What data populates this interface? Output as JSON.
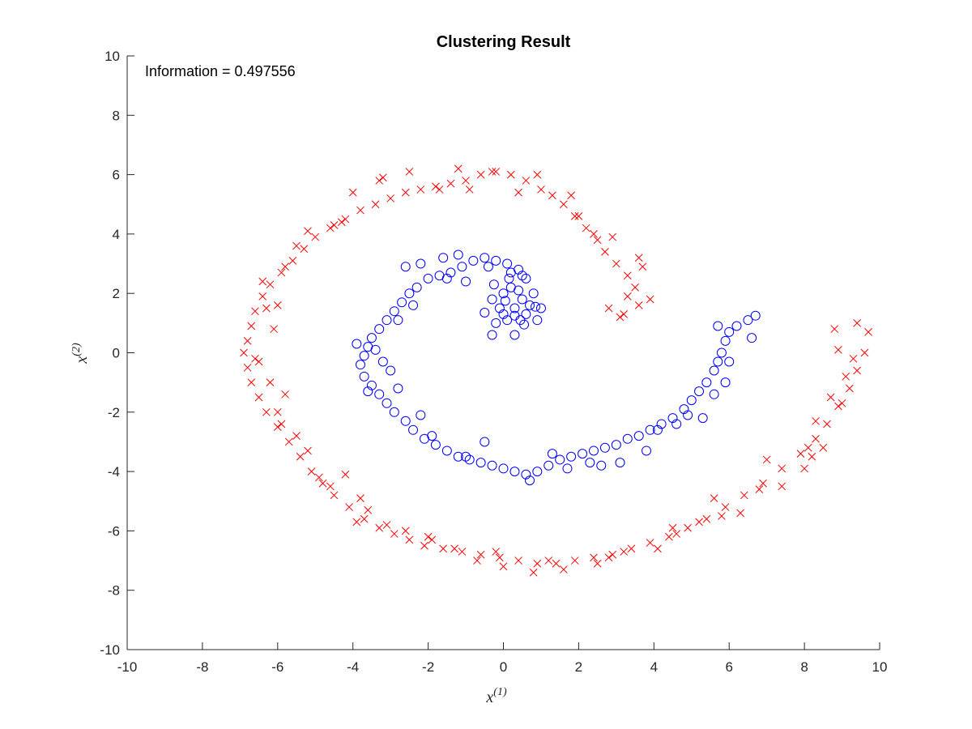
{
  "chart_data": {
    "type": "scatter",
    "title": "Clustering Result",
    "annotation": "Information = 0.497556",
    "xlabel": {
      "base": "x",
      "sup": "(1)"
    },
    "ylabel": {
      "base": "x",
      "sup": "(2)"
    },
    "xlim": [
      -10,
      10
    ],
    "ylim": [
      -10,
      10
    ],
    "xticks": [
      -10,
      -8,
      -6,
      -4,
      -2,
      0,
      2,
      4,
      6,
      8,
      10
    ],
    "yticks": [
      -10,
      -8,
      -6,
      -4,
      -2,
      0,
      2,
      4,
      6,
      8,
      10
    ],
    "grid": false,
    "series": [
      {
        "marker": "o",
        "color": "#0000ff",
        "points": [
          [
            -0.3,
            0.6
          ],
          [
            -0.2,
            1.0
          ],
          [
            0.0,
            1.3
          ],
          [
            0.3,
            1.5
          ],
          [
            0.5,
            1.8
          ],
          [
            0.4,
            2.1
          ],
          [
            0.2,
            2.2
          ],
          [
            0.0,
            2.0
          ],
          [
            -0.3,
            1.8
          ],
          [
            0.6,
            1.3
          ],
          [
            0.3,
            0.6
          ],
          [
            0.1,
            1.1
          ],
          [
            0.7,
            1.6
          ],
          [
            0.6,
            2.5
          ],
          [
            0.8,
            2.0
          ],
          [
            -0.5,
            1.35
          ],
          [
            0.3,
            1.25
          ],
          [
            0.05,
            1.75
          ],
          [
            0.55,
            0.95
          ],
          [
            0.85,
            1.55
          ],
          [
            0.5,
            2.6
          ],
          [
            0.4,
            2.8
          ],
          [
            0.1,
            3.0
          ],
          [
            -0.2,
            3.1
          ],
          [
            -0.5,
            3.2
          ],
          [
            -0.8,
            3.1
          ],
          [
            -1.1,
            2.9
          ],
          [
            -1.4,
            2.7
          ],
          [
            -1.7,
            2.6
          ],
          [
            -2.0,
            2.5
          ],
          [
            -2.3,
            2.2
          ],
          [
            -2.5,
            2.0
          ],
          [
            -2.7,
            1.7
          ],
          [
            -2.9,
            1.4
          ],
          [
            -3.1,
            1.1
          ],
          [
            -3.3,
            0.8
          ],
          [
            -3.5,
            0.5
          ],
          [
            -3.6,
            0.2
          ],
          [
            -3.7,
            -0.1
          ],
          [
            -3.8,
            -0.4
          ],
          [
            -3.7,
            -0.8
          ],
          [
            -3.5,
            -1.1
          ],
          [
            -3.3,
            -1.4
          ],
          [
            -3.1,
            -1.7
          ],
          [
            -2.9,
            -2.0
          ],
          [
            -2.6,
            -2.3
          ],
          [
            -2.4,
            -2.6
          ],
          [
            -2.1,
            -2.9
          ],
          [
            -1.8,
            -3.1
          ],
          [
            -1.5,
            -3.3
          ],
          [
            -1.2,
            -3.5
          ],
          [
            -0.9,
            -3.6
          ],
          [
            -0.6,
            -3.7
          ],
          [
            -0.3,
            -3.8
          ],
          [
            0.0,
            -3.9
          ],
          [
            0.3,
            -4.0
          ],
          [
            0.6,
            -4.1
          ],
          [
            0.9,
            -4.0
          ],
          [
            1.2,
            -3.8
          ],
          [
            1.5,
            -3.6
          ],
          [
            1.8,
            -3.5
          ],
          [
            2.1,
            -3.4
          ],
          [
            2.4,
            -3.3
          ],
          [
            2.7,
            -3.2
          ],
          [
            3.0,
            -3.1
          ],
          [
            3.3,
            -2.9
          ],
          [
            3.6,
            -2.8
          ],
          [
            3.9,
            -2.6
          ],
          [
            4.2,
            -2.4
          ],
          [
            4.5,
            -2.2
          ],
          [
            4.8,
            -1.9
          ],
          [
            5.0,
            -1.6
          ],
          [
            5.2,
            -1.3
          ],
          [
            5.4,
            -1.0
          ],
          [
            5.6,
            -0.6
          ],
          [
            5.7,
            -0.3
          ],
          [
            5.8,
            0.0
          ],
          [
            5.9,
            0.4
          ],
          [
            6.0,
            0.7
          ],
          [
            6.2,
            0.9
          ],
          [
            6.5,
            1.1
          ],
          [
            6.7,
            1.25
          ],
          [
            -2.8,
            -1.2
          ],
          [
            -3.0,
            -0.6
          ],
          [
            -3.2,
            -0.3
          ],
          [
            -3.4,
            0.1
          ],
          [
            -2.6,
            2.9
          ],
          [
            -2.2,
            3.0
          ],
          [
            -1.6,
            3.2
          ],
          [
            -1.2,
            3.3
          ],
          [
            -0.4,
            2.9
          ],
          [
            0.2,
            2.7
          ],
          [
            -3.9,
            0.3
          ],
          [
            -3.6,
            -1.3
          ],
          [
            -2.2,
            -2.1
          ],
          [
            -1.9,
            -2.8
          ],
          [
            -1.0,
            -3.5
          ],
          [
            -0.5,
            -3.0
          ],
          [
            0.7,
            -4.3
          ],
          [
            1.3,
            -3.4
          ],
          [
            1.7,
            -3.9
          ],
          [
            2.3,
            -3.7
          ],
          [
            2.6,
            -3.8
          ],
          [
            3.1,
            -3.7
          ],
          [
            3.8,
            -3.3
          ],
          [
            4.1,
            -2.6
          ],
          [
            4.6,
            -2.4
          ],
          [
            4.9,
            -2.1
          ],
          [
            5.3,
            -2.2
          ],
          [
            5.6,
            -1.4
          ],
          [
            5.9,
            -1.0
          ],
          [
            6.0,
            -0.3
          ],
          [
            5.7,
            0.9
          ],
          [
            6.6,
            0.5
          ],
          [
            0.9,
            1.1
          ],
          [
            1.0,
            1.5
          ],
          [
            -1.0,
            2.4
          ],
          [
            -1.5,
            2.5
          ],
          [
            -2.4,
            1.6
          ],
          [
            -2.8,
            1.1
          ],
          [
            -0.1,
            1.5
          ],
          [
            0.45,
            1.1
          ],
          [
            0.15,
            2.5
          ],
          [
            -0.25,
            2.3
          ]
        ]
      },
      {
        "marker": "x",
        "color": "#ff0000",
        "points": [
          [
            3.9,
            1.8
          ],
          [
            3.6,
            1.6
          ],
          [
            3.2,
            1.3
          ],
          [
            2.8,
            1.5
          ],
          [
            3.5,
            2.2
          ],
          [
            3.3,
            2.6
          ],
          [
            3.0,
            3.0
          ],
          [
            2.7,
            3.4
          ],
          [
            2.5,
            3.8
          ],
          [
            2.2,
            4.2
          ],
          [
            1.9,
            4.6
          ],
          [
            1.6,
            5.0
          ],
          [
            1.3,
            5.3
          ],
          [
            1.0,
            5.5
          ],
          [
            0.6,
            5.8
          ],
          [
            0.2,
            6.0
          ],
          [
            -0.2,
            6.1
          ],
          [
            -0.6,
            6.0
          ],
          [
            -1.0,
            5.8
          ],
          [
            -1.4,
            5.7
          ],
          [
            -1.8,
            5.6
          ],
          [
            -2.2,
            5.5
          ],
          [
            -2.6,
            5.4
          ],
          [
            -3.0,
            5.2
          ],
          [
            -3.4,
            5.0
          ],
          [
            -3.8,
            4.8
          ],
          [
            -4.2,
            4.5
          ],
          [
            -4.6,
            4.2
          ],
          [
            -5.0,
            3.9
          ],
          [
            -5.3,
            3.5
          ],
          [
            -5.6,
            3.1
          ],
          [
            -5.9,
            2.7
          ],
          [
            -6.2,
            2.3
          ],
          [
            -6.4,
            1.9
          ],
          [
            -6.6,
            1.4
          ],
          [
            -6.7,
            0.9
          ],
          [
            -6.8,
            0.4
          ],
          [
            -6.9,
            0.0
          ],
          [
            -6.8,
            -0.5
          ],
          [
            -6.7,
            -1.0
          ],
          [
            -6.5,
            -1.5
          ],
          [
            -6.3,
            -2.0
          ],
          [
            -6.0,
            -2.5
          ],
          [
            -5.7,
            -3.0
          ],
          [
            -5.4,
            -3.5
          ],
          [
            -5.1,
            -4.0
          ],
          [
            -4.8,
            -4.4
          ],
          [
            -4.5,
            -4.8
          ],
          [
            -4.1,
            -5.2
          ],
          [
            -3.7,
            -5.6
          ],
          [
            -3.3,
            -5.9
          ],
          [
            -2.9,
            -6.1
          ],
          [
            -2.5,
            -6.3
          ],
          [
            -2.1,
            -6.5
          ],
          [
            -1.6,
            -6.6
          ],
          [
            -1.1,
            -6.7
          ],
          [
            -0.6,
            -6.8
          ],
          [
            -0.1,
            -6.9
          ],
          [
            0.4,
            -7.0
          ],
          [
            0.9,
            -7.1
          ],
          [
            1.4,
            -7.1
          ],
          [
            1.9,
            -7.0
          ],
          [
            2.4,
            -6.9
          ],
          [
            2.9,
            -6.8
          ],
          [
            3.4,
            -6.6
          ],
          [
            3.9,
            -6.4
          ],
          [
            4.4,
            -6.2
          ],
          [
            4.9,
            -5.9
          ],
          [
            5.4,
            -5.6
          ],
          [
            5.9,
            -5.2
          ],
          [
            6.4,
            -4.8
          ],
          [
            6.9,
            -4.4
          ],
          [
            7.4,
            -3.9
          ],
          [
            7.9,
            -3.4
          ],
          [
            8.3,
            -2.9
          ],
          [
            8.6,
            -2.4
          ],
          [
            8.9,
            -1.8
          ],
          [
            9.2,
            -1.2
          ],
          [
            9.4,
            -0.6
          ],
          [
            9.6,
            0.0
          ],
          [
            9.7,
            0.7
          ],
          [
            9.4,
            1.0
          ],
          [
            8.8,
            0.8
          ],
          [
            3.1,
            1.2
          ],
          [
            3.6,
            3.2
          ],
          [
            2.9,
            3.9
          ],
          [
            1.8,
            5.3
          ],
          [
            0.9,
            6.0
          ],
          [
            -0.3,
            6.1
          ],
          [
            -1.2,
            6.2
          ],
          [
            -2.5,
            6.1
          ],
          [
            -3.3,
            5.8
          ],
          [
            -4.0,
            5.4
          ],
          [
            -4.3,
            4.4
          ],
          [
            -5.2,
            4.1
          ],
          [
            -5.8,
            2.9
          ],
          [
            -6.4,
            2.4
          ],
          [
            -6.3,
            1.5
          ],
          [
            -6.1,
            0.8
          ],
          [
            -6.5,
            -0.3
          ],
          [
            -6.2,
            -1.0
          ],
          [
            -5.8,
            -1.4
          ],
          [
            -5.9,
            -2.4
          ],
          [
            -5.2,
            -3.3
          ],
          [
            -4.9,
            -4.2
          ],
          [
            -4.2,
            -4.1
          ],
          [
            -3.8,
            -4.9
          ],
          [
            -3.9,
            -5.7
          ],
          [
            -3.1,
            -5.8
          ],
          [
            -2.6,
            -6.0
          ],
          [
            -1.9,
            -6.3
          ],
          [
            -1.3,
            -6.6
          ],
          [
            -0.7,
            -7.0
          ],
          [
            0.0,
            -7.2
          ],
          [
            0.8,
            -7.4
          ],
          [
            1.6,
            -7.3
          ],
          [
            2.5,
            -7.1
          ],
          [
            3.2,
            -6.7
          ],
          [
            4.1,
            -6.6
          ],
          [
            4.6,
            -6.1
          ],
          [
            5.2,
            -5.7
          ],
          [
            5.8,
            -5.5
          ],
          [
            6.3,
            -5.4
          ],
          [
            6.8,
            -4.6
          ],
          [
            7.4,
            -4.5
          ],
          [
            8.0,
            -3.9
          ],
          [
            8.1,
            -3.2
          ],
          [
            8.5,
            -3.2
          ],
          [
            8.2,
            -3.5
          ],
          [
            8.7,
            -1.5
          ],
          [
            9.0,
            -1.7
          ],
          [
            9.1,
            -0.8
          ],
          [
            8.9,
            0.1
          ],
          [
            3.3,
            1.9
          ],
          [
            3.7,
            2.9
          ],
          [
            2.4,
            4.0
          ],
          [
            2.0,
            4.6
          ],
          [
            0.4,
            5.4
          ],
          [
            -0.9,
            5.5
          ],
          [
            -1.7,
            5.5
          ],
          [
            -3.2,
            5.9
          ],
          [
            -4.5,
            4.3
          ],
          [
            -5.5,
            3.6
          ],
          [
            -6.0,
            1.6
          ],
          [
            -6.6,
            -0.2
          ],
          [
            -6.0,
            -2.0
          ],
          [
            -5.5,
            -2.8
          ],
          [
            -4.6,
            -4.5
          ],
          [
            -3.6,
            -5.3
          ],
          [
            -2.0,
            -6.2
          ],
          [
            -0.2,
            -6.7
          ],
          [
            1.2,
            -7.0
          ],
          [
            2.8,
            -6.9
          ],
          [
            4.5,
            -5.9
          ],
          [
            5.6,
            -4.9
          ],
          [
            7.0,
            -3.6
          ],
          [
            8.3,
            -2.3
          ],
          [
            9.3,
            -0.2
          ]
        ]
      }
    ]
  }
}
